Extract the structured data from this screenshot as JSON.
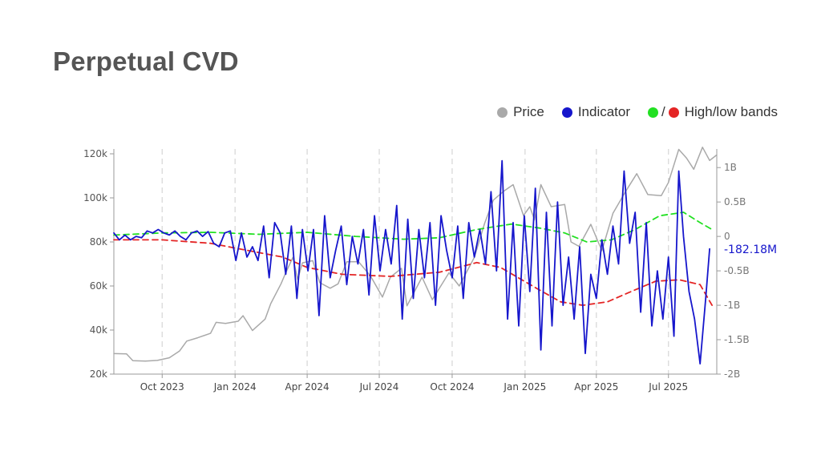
{
  "page": {
    "title": "Perpetual CVD"
  },
  "legend": {
    "price": {
      "label": "Price",
      "color": "#a9a9a9"
    },
    "indicator": {
      "label": "Indicator",
      "color": "#1616cc"
    },
    "bands": {
      "label": "High/low bands",
      "slash": "/",
      "high_color": "#22e022",
      "low_color": "#e42525"
    }
  },
  "chart_data": {
    "type": "line",
    "x_type": "date",
    "xlim": [
      "2023-08-01",
      "2025-08-31"
    ],
    "x_ticks": [
      {
        "date": "2023-10-01",
        "label": "Oct 2023"
      },
      {
        "date": "2024-01-01",
        "label": "Jan 2024"
      },
      {
        "date": "2024-04-01",
        "label": "Apr 2024"
      },
      {
        "date": "2024-07-01",
        "label": "Jul 2024"
      },
      {
        "date": "2024-10-01",
        "label": "Oct 2024"
      },
      {
        "date": "2025-01-01",
        "label": "Jan 2025"
      },
      {
        "date": "2025-04-01",
        "label": "Apr 2025"
      },
      {
        "date": "2025-07-01",
        "label": "Jul 2025"
      }
    ],
    "y_left": {
      "range": [
        20000,
        120000
      ],
      "ticks": [
        {
          "v": 20000,
          "label": "20k"
        },
        {
          "v": 40000,
          "label": "40k"
        },
        {
          "v": 60000,
          "label": "60k"
        },
        {
          "v": 80000,
          "label": "80k"
        },
        {
          "v": 100000,
          "label": "100k"
        },
        {
          "v": 120000,
          "label": "120k"
        }
      ]
    },
    "y_right": {
      "range": [
        -2.0,
        1.2
      ],
      "unit": "B",
      "ticks": [
        {
          "v": 1,
          "label": "1B"
        },
        {
          "v": 0.5,
          "label": "0.5B"
        },
        {
          "v": 0,
          "label": "0"
        },
        {
          "v": -0.5,
          "label": "-0.5B"
        },
        {
          "v": -1,
          "label": "-1B"
        },
        {
          "v": -1.5,
          "label": "-1.5B"
        },
        {
          "v": -2,
          "label": "-2B"
        }
      ]
    },
    "grid": {
      "vertical": "dashed",
      "horizontal": false
    },
    "last_value_label": {
      "text": "-182.18M",
      "value": -0.18218,
      "color": "#1616cc"
    },
    "series": [
      {
        "name": "Price",
        "axis": "left",
        "color": "#a9a9a9",
        "style": "solid",
        "points": [
          [
            "2023-08-01",
            29300
          ],
          [
            "2023-08-17",
            29200
          ],
          [
            "2023-08-25",
            26100
          ],
          [
            "2023-09-10",
            25900
          ],
          [
            "2023-09-25",
            26200
          ],
          [
            "2023-10-10",
            27400
          ],
          [
            "2023-10-23",
            30500
          ],
          [
            "2023-11-01",
            35000
          ],
          [
            "2023-11-15",
            36500
          ],
          [
            "2023-12-01",
            38500
          ],
          [
            "2023-12-08",
            43500
          ],
          [
            "2023-12-20",
            43000
          ],
          [
            "2024-01-05",
            44000
          ],
          [
            "2024-01-11",
            46500
          ],
          [
            "2024-01-23",
            39800
          ],
          [
            "2024-02-08",
            45000
          ],
          [
            "2024-02-15",
            52000
          ],
          [
            "2024-02-28",
            61000
          ],
          [
            "2024-03-05",
            66000
          ],
          [
            "2024-03-14",
            73000
          ],
          [
            "2024-03-20",
            63000
          ],
          [
            "2024-03-26",
            70500
          ],
          [
            "2024-04-08",
            71500
          ],
          [
            "2024-04-17",
            61500
          ],
          [
            "2024-04-30",
            59000
          ],
          [
            "2024-05-10",
            61000
          ],
          [
            "2024-05-21",
            71000
          ],
          [
            "2024-06-05",
            71000
          ],
          [
            "2024-06-20",
            64500
          ],
          [
            "2024-07-05",
            55000
          ],
          [
            "2024-07-15",
            64000
          ],
          [
            "2024-07-29",
            68000
          ],
          [
            "2024-08-05",
            51000
          ],
          [
            "2024-08-24",
            64000
          ],
          [
            "2024-09-06",
            53800
          ],
          [
            "2024-09-27",
            66000
          ],
          [
            "2024-10-10",
            60000
          ],
          [
            "2024-10-29",
            73000
          ],
          [
            "2024-11-11",
            88500
          ],
          [
            "2024-11-22",
            99000
          ],
          [
            "2024-12-05",
            103000
          ],
          [
            "2024-12-17",
            106000
          ],
          [
            "2024-12-30",
            92000
          ],
          [
            "2025-01-07",
            96000
          ],
          [
            "2025-01-13",
            90000
          ],
          [
            "2025-01-21",
            106000
          ],
          [
            "2025-02-03",
            96000
          ],
          [
            "2025-02-20",
            97000
          ],
          [
            "2025-02-28",
            80000
          ],
          [
            "2025-03-10",
            78000
          ],
          [
            "2025-03-25",
            88000
          ],
          [
            "2025-04-08",
            76000
          ],
          [
            "2025-04-22",
            93000
          ],
          [
            "2025-05-08",
            103000
          ],
          [
            "2025-05-22",
            111000
          ],
          [
            "2025-06-05",
            101500
          ],
          [
            "2025-06-22",
            101000
          ],
          [
            "2025-07-01",
            107000
          ],
          [
            "2025-07-14",
            122000
          ],
          [
            "2025-07-24",
            118000
          ],
          [
            "2025-08-02",
            113000
          ],
          [
            "2025-08-13",
            123000
          ],
          [
            "2025-08-22",
            117000
          ],
          [
            "2025-08-31",
            119500
          ]
        ]
      },
      {
        "name": "Indicator",
        "axis": "right",
        "color": "#1616cc",
        "style": "solid",
        "unit": "B",
        "points": [
          [
            "2023-08-01",
            0.05
          ],
          [
            "2023-08-08",
            -0.05
          ],
          [
            "2023-08-15",
            0.02
          ],
          [
            "2023-08-22",
            -0.05
          ],
          [
            "2023-08-29",
            0.0
          ],
          [
            "2023-09-05",
            -0.02
          ],
          [
            "2023-09-12",
            0.08
          ],
          [
            "2023-09-19",
            0.05
          ],
          [
            "2023-09-26",
            0.1
          ],
          [
            "2023-10-03",
            0.05
          ],
          [
            "2023-10-10",
            0.02
          ],
          [
            "2023-10-17",
            0.08
          ],
          [
            "2023-10-24",
            0.0
          ],
          [
            "2023-10-31",
            -0.05
          ],
          [
            "2023-11-07",
            0.05
          ],
          [
            "2023-11-14",
            0.08
          ],
          [
            "2023-11-21",
            0.0
          ],
          [
            "2023-11-28",
            0.07
          ],
          [
            "2023-12-05",
            -0.1
          ],
          [
            "2023-12-12",
            -0.15
          ],
          [
            "2023-12-19",
            0.05
          ],
          [
            "2023-12-26",
            0.08
          ],
          [
            "2024-01-02",
            -0.35
          ],
          [
            "2024-01-09",
            0.05
          ],
          [
            "2024-01-16",
            -0.3
          ],
          [
            "2024-01-23",
            -0.15
          ],
          [
            "2024-01-30",
            -0.35
          ],
          [
            "2024-02-06",
            0.15
          ],
          [
            "2024-02-13",
            -0.6
          ],
          [
            "2024-02-20",
            0.2
          ],
          [
            "2024-02-27",
            0.05
          ],
          [
            "2024-03-05",
            -0.55
          ],
          [
            "2024-03-12",
            0.15
          ],
          [
            "2024-03-19",
            -0.9
          ],
          [
            "2024-03-26",
            0.1
          ],
          [
            "2024-04-02",
            -0.5
          ],
          [
            "2024-04-09",
            0.1
          ],
          [
            "2024-04-16",
            -1.15
          ],
          [
            "2024-04-23",
            0.3
          ],
          [
            "2024-04-30",
            -0.6
          ],
          [
            "2024-05-07",
            -0.2
          ],
          [
            "2024-05-14",
            0.15
          ],
          [
            "2024-05-21",
            -0.7
          ],
          [
            "2024-05-28",
            0.0
          ],
          [
            "2024-06-04",
            -0.4
          ],
          [
            "2024-06-11",
            0.1
          ],
          [
            "2024-06-18",
            -0.85
          ],
          [
            "2024-06-25",
            0.3
          ],
          [
            "2024-07-02",
            -0.5
          ],
          [
            "2024-07-09",
            0.1
          ],
          [
            "2024-07-16",
            -0.4
          ],
          [
            "2024-07-23",
            0.45
          ],
          [
            "2024-07-30",
            -1.2
          ],
          [
            "2024-08-06",
            0.25
          ],
          [
            "2024-08-13",
            -0.9
          ],
          [
            "2024-08-20",
            0.1
          ],
          [
            "2024-08-27",
            -0.6
          ],
          [
            "2024-09-03",
            0.2
          ],
          [
            "2024-09-10",
            -1.0
          ],
          [
            "2024-09-17",
            0.3
          ],
          [
            "2024-09-24",
            -0.2
          ],
          [
            "2024-10-01",
            -0.6
          ],
          [
            "2024-10-08",
            0.15
          ],
          [
            "2024-10-15",
            -0.9
          ],
          [
            "2024-10-22",
            0.2
          ],
          [
            "2024-10-29",
            -0.3
          ],
          [
            "2024-11-05",
            0.1
          ],
          [
            "2024-11-12",
            -0.4
          ],
          [
            "2024-11-19",
            0.65
          ],
          [
            "2024-11-26",
            -0.5
          ],
          [
            "2024-12-03",
            1.1
          ],
          [
            "2024-12-10",
            -1.2
          ],
          [
            "2024-12-17",
            0.2
          ],
          [
            "2024-12-24",
            -1.3
          ],
          [
            "2024-12-31",
            0.3
          ],
          [
            "2025-01-07",
            -0.8
          ],
          [
            "2025-01-14",
            0.7
          ],
          [
            "2025-01-21",
            -1.65
          ],
          [
            "2025-01-28",
            0.35
          ],
          [
            "2025-02-04",
            -1.3
          ],
          [
            "2025-02-11",
            0.5
          ],
          [
            "2025-02-18",
            -1.0
          ],
          [
            "2025-02-25",
            -0.3
          ],
          [
            "2025-03-04",
            -1.2
          ],
          [
            "2025-03-11",
            -0.15
          ],
          [
            "2025-03-18",
            -1.7
          ],
          [
            "2025-03-25",
            -0.55
          ],
          [
            "2025-04-01",
            -0.9
          ],
          [
            "2025-04-08",
            -0.05
          ],
          [
            "2025-04-15",
            -0.55
          ],
          [
            "2025-04-22",
            0.15
          ],
          [
            "2025-04-29",
            -0.4
          ],
          [
            "2025-05-06",
            0.95
          ],
          [
            "2025-05-13",
            -0.1
          ],
          [
            "2025-05-20",
            0.35
          ],
          [
            "2025-05-27",
            -1.1
          ],
          [
            "2025-06-03",
            0.2
          ],
          [
            "2025-06-10",
            -1.3
          ],
          [
            "2025-06-17",
            -0.5
          ],
          [
            "2025-06-24",
            -1.2
          ],
          [
            "2025-07-01",
            -0.3
          ],
          [
            "2025-07-08",
            -1.45
          ],
          [
            "2025-07-14",
            0.95
          ],
          [
            "2025-07-20",
            0.0
          ],
          [
            "2025-07-27",
            -0.8
          ],
          [
            "2025-08-03",
            -1.2
          ],
          [
            "2025-08-10",
            -1.85
          ],
          [
            "2025-08-17",
            -0.9
          ],
          [
            "2025-08-22",
            -0.18
          ]
        ]
      },
      {
        "name": "High band",
        "axis": "right",
        "color": "#22e022",
        "style": "dashed",
        "unit": "B",
        "points": [
          [
            "2023-08-01",
            0.02
          ],
          [
            "2023-10-01",
            0.05
          ],
          [
            "2023-12-01",
            0.06
          ],
          [
            "2024-02-01",
            0.03
          ],
          [
            "2024-04-01",
            0.06
          ],
          [
            "2024-06-01",
            0.0
          ],
          [
            "2024-08-01",
            -0.04
          ],
          [
            "2024-09-15",
            -0.02
          ],
          [
            "2024-11-01",
            0.1
          ],
          [
            "2024-12-15",
            0.18
          ],
          [
            "2025-01-20",
            0.12
          ],
          [
            "2025-02-20",
            0.05
          ],
          [
            "2025-03-20",
            -0.08
          ],
          [
            "2025-04-20",
            -0.05
          ],
          [
            "2025-05-20",
            0.1
          ],
          [
            "2025-06-20",
            0.3
          ],
          [
            "2025-07-20",
            0.35
          ],
          [
            "2025-08-10",
            0.2
          ],
          [
            "2025-08-25",
            0.1
          ]
        ]
      },
      {
        "name": "Low band",
        "axis": "right",
        "color": "#e42525",
        "style": "dashed",
        "unit": "B",
        "points": [
          [
            "2023-08-01",
            -0.05
          ],
          [
            "2023-10-01",
            -0.05
          ],
          [
            "2023-12-01",
            -0.1
          ],
          [
            "2024-01-15",
            -0.2
          ],
          [
            "2024-03-01",
            -0.3
          ],
          [
            "2024-04-01",
            -0.45
          ],
          [
            "2024-05-15",
            -0.55
          ],
          [
            "2024-07-15",
            -0.58
          ],
          [
            "2024-09-15",
            -0.52
          ],
          [
            "2024-11-01",
            -0.38
          ],
          [
            "2024-12-01",
            -0.45
          ],
          [
            "2025-01-15",
            -0.75
          ],
          [
            "2025-02-15",
            -0.95
          ],
          [
            "2025-03-15",
            -1.0
          ],
          [
            "2025-04-15",
            -0.95
          ],
          [
            "2025-05-15",
            -0.8
          ],
          [
            "2025-06-15",
            -0.65
          ],
          [
            "2025-07-15",
            -0.63
          ],
          [
            "2025-08-10",
            -0.7
          ],
          [
            "2025-08-25",
            -1.0
          ]
        ]
      }
    ]
  }
}
